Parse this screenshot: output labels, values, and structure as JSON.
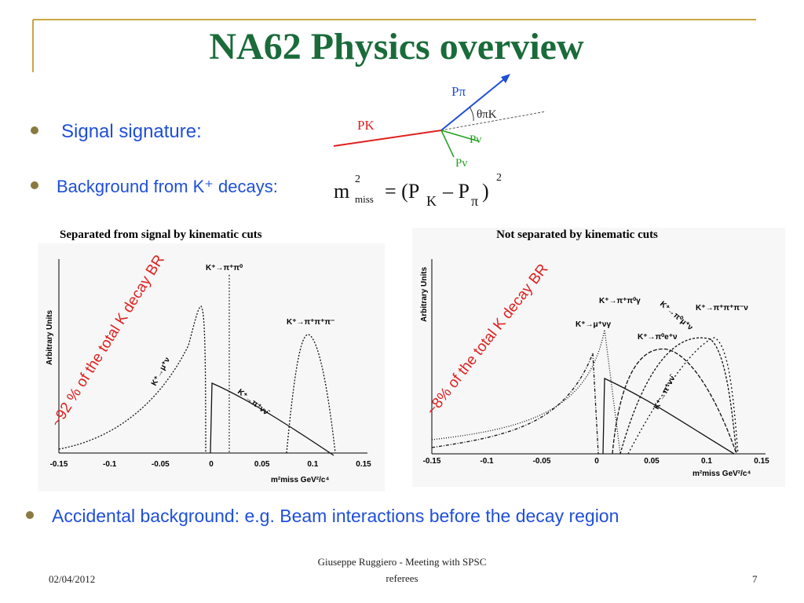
{
  "title": "NA62 Physics overview",
  "bullets": [
    "Signal signature:",
    "Background from K⁺ decays:",
    "Accidental background: e.g. Beam interactions before the decay region"
  ],
  "diagram": {
    "p_pi": "Pπ",
    "theta": "θπK",
    "p_k": "PK",
    "p_nu1": "Pν",
    "p_nu2": "Pν"
  },
  "formula": [
    "m",
    "2",
    "miss",
    "= (P",
    "K",
    "– P",
    "π",
    ")",
    "2"
  ],
  "plots": [
    {
      "caption": "Separated from signal by kinematic cuts",
      "annotation": "~92 % of the total K decay BR",
      "y_label": "Arbitrary Units",
      "x_label": "m²miss GeV²/c⁴",
      "x_ticks": [
        "-0.15",
        "-0.1",
        "-0.05",
        "0",
        "0.05",
        "0.1",
        "0.15"
      ],
      "labels": [
        "K⁺→π⁺π⁰",
        "K⁺→π⁺π⁺π⁻",
        "K⁺→μ⁺ν",
        "K⁺→π⁺νν̄"
      ]
    },
    {
      "caption": "Not separated by kinematic cuts",
      "annotation": "~8% of the total K decay BR",
      "y_label": "Arbitrary Units",
      "x_label": "m²miss GeV²/c⁴",
      "x_ticks": [
        "-0.15",
        "-0.1",
        "-0.05",
        "0",
        "0.05",
        "0.1",
        "0.15"
      ],
      "labels": [
        "K⁺→π⁺π⁰γ",
        "K⁺→μ⁺νγ",
        "K⁺→π⁺π⁺π⁻ν",
        "K⁺→π⁰e⁺ν",
        "K⁺→π⁰μ⁺ν",
        "K⁺→π⁺νν̄"
      ]
    }
  ],
  "footer": {
    "date": "02/04/2012",
    "author": [
      "Giuseppe Ruggiero - Meeting with SPSC",
      "referees"
    ],
    "page": "7"
  }
}
